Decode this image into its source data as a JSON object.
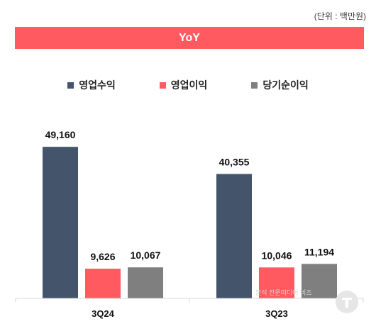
{
  "unit_label": "(단위 : 백만원)",
  "banner_title": "YoY",
  "watermark_text": "분석 전문미디어 비즈",
  "chart_data": {
    "type": "bar",
    "categories": [
      "3Q24",
      "3Q23"
    ],
    "series": [
      {
        "name": "영업수익",
        "color": "#44546a",
        "values": [
          49160,
          40355
        ],
        "labels": [
          "49,160",
          "40,355"
        ]
      },
      {
        "name": "영업이익",
        "color": "#ff5a5f",
        "values": [
          9626,
          10046
        ],
        "labels": [
          "9,626",
          "10,046"
        ]
      },
      {
        "name": "당기순이익",
        "color": "#7f7f7f",
        "values": [
          10067,
          11194
        ],
        "labels": [
          "10,067",
          "11,194"
        ]
      }
    ],
    "title": "YoY",
    "xlabel": "",
    "ylabel": "",
    "ylim": [
      0,
      60000
    ],
    "grid": false,
    "legend": "top-center"
  }
}
